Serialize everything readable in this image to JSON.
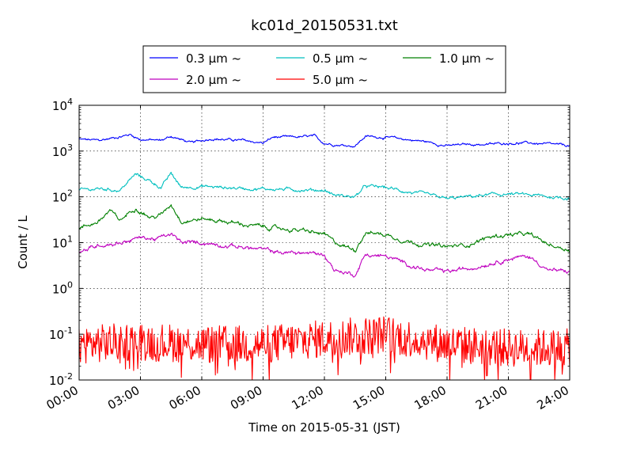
{
  "chart_data": {
    "type": "line",
    "title": "kc01d_20150531.txt",
    "xlabel": "Time on 2015-05-31 (JST)",
    "ylabel": "Count / L",
    "y_scale": "log",
    "ylim": [
      0.01,
      10000
    ],
    "xlim": [
      "00:00",
      "24:00"
    ],
    "x_ticks": [
      "00:00",
      "03:00",
      "06:00",
      "09:00",
      "12:00",
      "15:00",
      "18:00",
      "21:00",
      "24:00"
    ],
    "y_ticks": [
      {
        "base": "10",
        "exp": "-2"
      },
      {
        "base": "10",
        "exp": "-1"
      },
      {
        "base": "10",
        "exp": "0"
      },
      {
        "base": "10",
        "exp": "1"
      },
      {
        "base": "10",
        "exp": "2"
      },
      {
        "base": "10",
        "exp": "3"
      },
      {
        "base": "10",
        "exp": "4"
      }
    ],
    "grid": true,
    "legend_position": "top-center",
    "legend_columns": 3,
    "series": [
      {
        "name": "0.3 μm ~",
        "color": "#0000ff",
        "x": [
          "00:00",
          "01:00",
          "02:30",
          "03:00",
          "04:00",
          "04:30",
          "05:30",
          "06:30",
          "07:00",
          "08:00",
          "09:00",
          "09:30",
          "10:30",
          "11:30",
          "11:45",
          "12:00",
          "12:30",
          "13:30",
          "14:00",
          "15:00",
          "16:00",
          "17:00",
          "18:00",
          "19:00",
          "20:00",
          "21:00",
          "22:00",
          "23:00",
          "24:00"
        ],
        "y": [
          1800,
          1700,
          2300,
          1800,
          1700,
          2100,
          1500,
          1900,
          1800,
          1700,
          1500,
          2000,
          2000,
          2100,
          1700,
          1500,
          1400,
          1300,
          2100,
          2000,
          1800,
          1600,
          1300,
          1400,
          1400,
          1500,
          1500,
          1400,
          1300
        ],
        "noise": 0.03
      },
      {
        "name": "0.5 μm ~",
        "color": "#00bfbf",
        "x": [
          "00:00",
          "01:00",
          "02:00",
          "02:45",
          "03:30",
          "04:00",
          "04:30",
          "05:00",
          "06:00",
          "07:00",
          "08:00",
          "09:00",
          "10:30",
          "12:00",
          "12:30",
          "13:30",
          "14:00",
          "15:00",
          "16:00",
          "17:00",
          "18:00",
          "19:00",
          "20:00",
          "21:00",
          "22:00",
          "23:00",
          "24:00"
        ],
        "y": [
          140,
          150,
          140,
          310,
          220,
          160,
          320,
          160,
          170,
          160,
          155,
          150,
          145,
          140,
          110,
          100,
          170,
          160,
          130,
          110,
          90,
          100,
          110,
          115,
          110,
          100,
          95
        ],
        "noise": 0.04
      },
      {
        "name": "1.0 μm ~",
        "color": "#008000",
        "x": [
          "00:00",
          "01:00",
          "01:30",
          "02:00",
          "02:45",
          "03:30",
          "04:00",
          "04:30",
          "05:00",
          "06:00",
          "07:00",
          "08:00",
          "09:00",
          "10:00",
          "11:00",
          "12:00",
          "12:30",
          "13:30",
          "14:00",
          "15:00",
          "16:00",
          "17:00",
          "18:00",
          "19:00",
          "20:00",
          "21:00",
          "22:00",
          "23:00",
          "24:00"
        ],
        "y": [
          20,
          30,
          50,
          30,
          60,
          35,
          40,
          70,
          30,
          33,
          30,
          25,
          22,
          20,
          18,
          15,
          10,
          7,
          17,
          15,
          11,
          9,
          8,
          9,
          13,
          15,
          15,
          9,
          7
        ],
        "noise": 0.05
      },
      {
        "name": "2.0 μm ~",
        "color": "#bf00bf",
        "x": [
          "00:00",
          "01:00",
          "02:00",
          "03:00",
          "03:45",
          "04:30",
          "05:00",
          "06:00",
          "07:00",
          "08:00",
          "09:00",
          "10:00",
          "11:00",
          "12:00",
          "12:30",
          "13:30",
          "14:00",
          "15:00",
          "16:00",
          "17:00",
          "18:00",
          "19:00",
          "20:00",
          "21:00",
          "22:00",
          "23:00",
          "24:00"
        ],
        "y": [
          6,
          9,
          10,
          13,
          12,
          15,
          10,
          10,
          9,
          8,
          7,
          6,
          6,
          5.5,
          2.5,
          2,
          5.5,
          5,
          3.5,
          2.5,
          2.3,
          2.7,
          3.5,
          4.5,
          5,
          2.5,
          2.3
        ],
        "noise": 0.05
      },
      {
        "name": "5.0 μm ~",
        "color": "#ff0000",
        "x": [
          "00:00",
          "03:00",
          "06:00",
          "09:00",
          "12:00",
          "15:00",
          "18:00",
          "21:00",
          "24:00"
        ],
        "y": [
          0.06,
          0.07,
          0.06,
          0.06,
          0.08,
          0.1,
          0.06,
          0.05,
          0.05
        ],
        "noise": 0.35
      }
    ]
  }
}
